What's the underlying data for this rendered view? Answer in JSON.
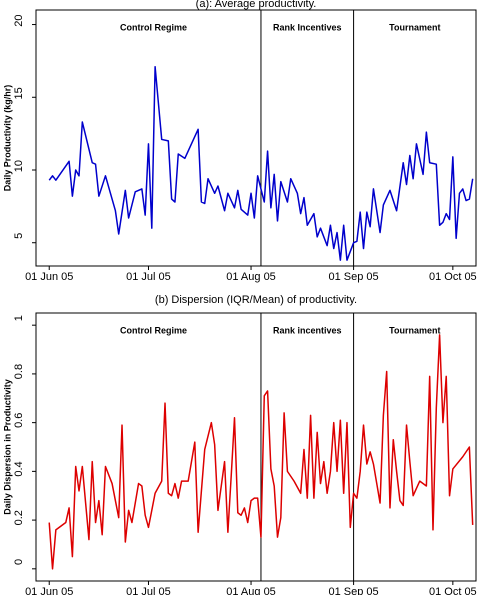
{
  "chart_data": [
    {
      "type": "line",
      "title": "(a): Average productivity.",
      "y_label": "Daily Productivity (kg/hr)",
      "annotations": [
        "Control Regime",
        "Rank Incentives",
        "Tournament"
      ],
      "regime_breaks": [
        "2005-08-04",
        "2005-09-01"
      ],
      "xlim": [
        "2005-05-28",
        "2005-10-08"
      ],
      "xticks": [
        {
          "value": "2005-06-01",
          "label": "01 Jun 05"
        },
        {
          "value": "2005-07-01",
          "label": "01 Jul 05"
        },
        {
          "value": "2005-08-01",
          "label": "01 Aug 05"
        },
        {
          "value": "2005-09-01",
          "label": "01 Sep 05"
        },
        {
          "value": "2005-10-01",
          "label": "01 Oct 05"
        }
      ],
      "ylim": [
        3.4,
        21
      ],
      "yticks": [
        5,
        10,
        15,
        20
      ],
      "x": [
        "2005-06-01",
        "2005-06-02",
        "2005-06-03",
        "2005-06-07",
        "2005-06-08",
        "2005-06-09",
        "2005-06-10",
        "2005-06-11",
        "2005-06-14",
        "2005-06-15",
        "2005-06-16",
        "2005-06-18",
        "2005-06-21",
        "2005-06-22",
        "2005-06-24",
        "2005-06-25",
        "2005-06-27",
        "2005-06-29",
        "2005-06-30",
        "2005-07-01",
        "2005-07-02",
        "2005-07-03",
        "2005-07-05",
        "2005-07-07",
        "2005-07-08",
        "2005-07-09",
        "2005-07-10",
        "2005-07-12",
        "2005-07-14",
        "2005-07-16",
        "2005-07-17",
        "2005-07-18",
        "2005-07-19",
        "2005-07-21",
        "2005-07-22",
        "2005-07-24",
        "2005-07-25",
        "2005-07-27",
        "2005-07-28",
        "2005-07-29",
        "2005-07-31",
        "2005-08-01",
        "2005-08-02",
        "2005-08-03",
        "2005-08-05",
        "2005-08-06",
        "2005-08-07",
        "2005-08-08",
        "2005-08-09",
        "2005-08-10",
        "2005-08-12",
        "2005-08-13",
        "2005-08-15",
        "2005-08-16",
        "2005-08-17",
        "2005-08-18",
        "2005-08-20",
        "2005-08-21",
        "2005-08-22",
        "2005-08-24",
        "2005-08-25",
        "2005-08-26",
        "2005-08-27",
        "2005-08-28",
        "2005-08-29",
        "2005-08-30",
        "2005-08-31",
        "2005-09-01",
        "2005-09-02",
        "2005-09-03",
        "2005-09-04",
        "2005-09-05",
        "2005-09-06",
        "2005-09-07",
        "2005-09-09",
        "2005-09-10",
        "2005-09-12",
        "2005-09-14",
        "2005-09-16",
        "2005-09-17",
        "2005-09-18",
        "2005-09-19",
        "2005-09-20",
        "2005-09-22",
        "2005-09-23",
        "2005-09-24",
        "2005-09-26",
        "2005-09-27",
        "2005-09-28",
        "2005-09-29",
        "2005-09-30",
        "2005-10-01",
        "2005-10-02",
        "2005-10-03",
        "2005-10-04",
        "2005-10-05",
        "2005-10-06",
        "2005-10-07"
      ],
      "series": [
        {
          "color": "#0000cc",
          "values": [
            9.3,
            9.6,
            9.3,
            10.6,
            8.2,
            10.0,
            9.6,
            13.3,
            10.5,
            10.4,
            8.2,
            9.6,
            7.2,
            5.6,
            8.6,
            6.7,
            8.5,
            8.7,
            6.9,
            11.8,
            6.0,
            17.1,
            12.1,
            12.0,
            8.0,
            7.8,
            11.1,
            10.8,
            11.8,
            12.8,
            7.8,
            7.7,
            9.4,
            8.4,
            8.9,
            7.2,
            8.4,
            7.4,
            8.6,
            7.3,
            6.9,
            8.4,
            6.7,
            9.6,
            7.8,
            11.3,
            7.4,
            9.7,
            6.5,
            9.2,
            7.8,
            9.4,
            8.4,
            7.0,
            8.1,
            6.2,
            7.0,
            5.4,
            6.0,
            4.8,
            6.2,
            4.6,
            5.7,
            3.8,
            6.2,
            3.8,
            4.4,
            5.0,
            5.1,
            7.1,
            4.6,
            7.1,
            6.1,
            8.7,
            5.7,
            7.6,
            8.6,
            7.2,
            10.5,
            9.0,
            11.0,
            9.4,
            11.8,
            9.7,
            12.6,
            10.5,
            10.4,
            6.2,
            6.4,
            7.0,
            6.6,
            10.9,
            5.3,
            8.4,
            8.7,
            7.9,
            8.0,
            9.4
          ]
        }
      ]
    },
    {
      "type": "line",
      "title": "(b) Dispersion (IQR/Mean) of productivity.",
      "y_label": "Daily Dispersion in Productivity",
      "annotations": [
        "Control Regime",
        "Rank incentives",
        "Tournament"
      ],
      "regime_breaks": [
        "2005-08-04",
        "2005-09-01"
      ],
      "xlim": [
        "2005-05-28",
        "2005-10-08"
      ],
      "xticks": [
        {
          "value": "2005-06-01",
          "label": "01 Jun 05"
        },
        {
          "value": "2005-07-01",
          "label": "01 Jul 05"
        },
        {
          "value": "2005-08-01",
          "label": "01 Aug 05"
        },
        {
          "value": "2005-09-01",
          "label": "01 Sep 05"
        },
        {
          "value": "2005-10-01",
          "label": "01 Oct 05"
        }
      ],
      "ylim": [
        -0.05,
        1.05
      ],
      "yticks": [
        0,
        0.2,
        0.4,
        0.6,
        0.8,
        1
      ],
      "x": [
        "2005-06-01",
        "2005-06-02",
        "2005-06-03",
        "2005-06-06",
        "2005-06-07",
        "2005-06-08",
        "2005-06-09",
        "2005-06-10",
        "2005-06-11",
        "2005-06-12",
        "2005-06-13",
        "2005-06-14",
        "2005-06-15",
        "2005-06-16",
        "2005-06-17",
        "2005-06-18",
        "2005-06-20",
        "2005-06-22",
        "2005-06-23",
        "2005-06-24",
        "2005-06-25",
        "2005-06-26",
        "2005-06-28",
        "2005-06-29",
        "2005-06-30",
        "2005-07-01",
        "2005-07-03",
        "2005-07-05",
        "2005-07-06",
        "2005-07-07",
        "2005-07-08",
        "2005-07-09",
        "2005-07-10",
        "2005-07-11",
        "2005-07-13",
        "2005-07-15",
        "2005-07-16",
        "2005-07-18",
        "2005-07-20",
        "2005-07-21",
        "2005-07-22",
        "2005-07-24",
        "2005-07-25",
        "2005-07-26",
        "2005-07-27",
        "2005-07-28",
        "2005-07-29",
        "2005-07-30",
        "2005-07-31",
        "2005-08-01",
        "2005-08-02",
        "2005-08-03",
        "2005-08-04",
        "2005-08-05",
        "2005-08-06",
        "2005-08-07",
        "2005-08-08",
        "2005-08-09",
        "2005-08-10",
        "2005-08-11",
        "2005-08-12",
        "2005-08-14",
        "2005-08-16",
        "2005-08-17",
        "2005-08-18",
        "2005-08-19",
        "2005-08-20",
        "2005-08-21",
        "2005-08-22",
        "2005-08-23",
        "2005-08-24",
        "2005-08-25",
        "2005-08-26",
        "2005-08-27",
        "2005-08-28",
        "2005-08-29",
        "2005-08-30",
        "2005-08-31",
        "2005-09-01",
        "2005-09-02",
        "2005-09-03",
        "2005-09-04",
        "2005-09-05",
        "2005-09-06",
        "2005-09-07",
        "2005-09-09",
        "2005-09-10",
        "2005-09-11",
        "2005-09-12",
        "2005-09-13",
        "2005-09-14",
        "2005-09-15",
        "2005-09-16",
        "2005-09-17",
        "2005-09-18",
        "2005-09-19",
        "2005-09-21",
        "2005-09-23",
        "2005-09-24",
        "2005-09-25",
        "2005-09-26",
        "2005-09-27",
        "2005-09-28",
        "2005-09-29",
        "2005-09-30",
        "2005-10-01",
        "2005-10-04",
        "2005-10-06",
        "2005-10-07"
      ],
      "series": [
        {
          "color": "#dd0000",
          "values": [
            0.19,
            0,
            0.16,
            0.19,
            0.25,
            0.05,
            0.42,
            0.32,
            0.42,
            0.27,
            0.12,
            0.44,
            0.19,
            0.28,
            0.14,
            0.42,
            0.35,
            0.21,
            0.59,
            0.11,
            0.24,
            0.19,
            0.35,
            0.34,
            0.22,
            0.17,
            0.31,
            0.36,
            0.68,
            0.31,
            0.3,
            0.35,
            0.29,
            0.36,
            0.36,
            0.52,
            0.15,
            0.49,
            0.6,
            0.51,
            0.24,
            0.44,
            0.15,
            0.38,
            0.62,
            0.23,
            0.22,
            0.25,
            0.19,
            0.28,
            0.29,
            0.29,
            0.13,
            0.71,
            0.73,
            0.41,
            0.34,
            0.13,
            0.21,
            0.64,
            0.4,
            0.36,
            0.31,
            0.49,
            0.29,
            0.63,
            0.29,
            0.56,
            0.35,
            0.44,
            0.31,
            0.4,
            0.6,
            0.4,
            0.61,
            0.31,
            0.6,
            0.17,
            0.31,
            0.29,
            0.4,
            0.59,
            0.43,
            0.48,
            0.43,
            0.27,
            0.63,
            0.81,
            0.25,
            0.53,
            0.4,
            0.28,
            0.26,
            0.59,
            0.44,
            0.3,
            0.36,
            0.34,
            0.79,
            0.16,
            0.66,
            0.96,
            0.6,
            0.79,
            0.3,
            0.41,
            0.46,
            0.5,
            0.18
          ]
        }
      ]
    }
  ]
}
